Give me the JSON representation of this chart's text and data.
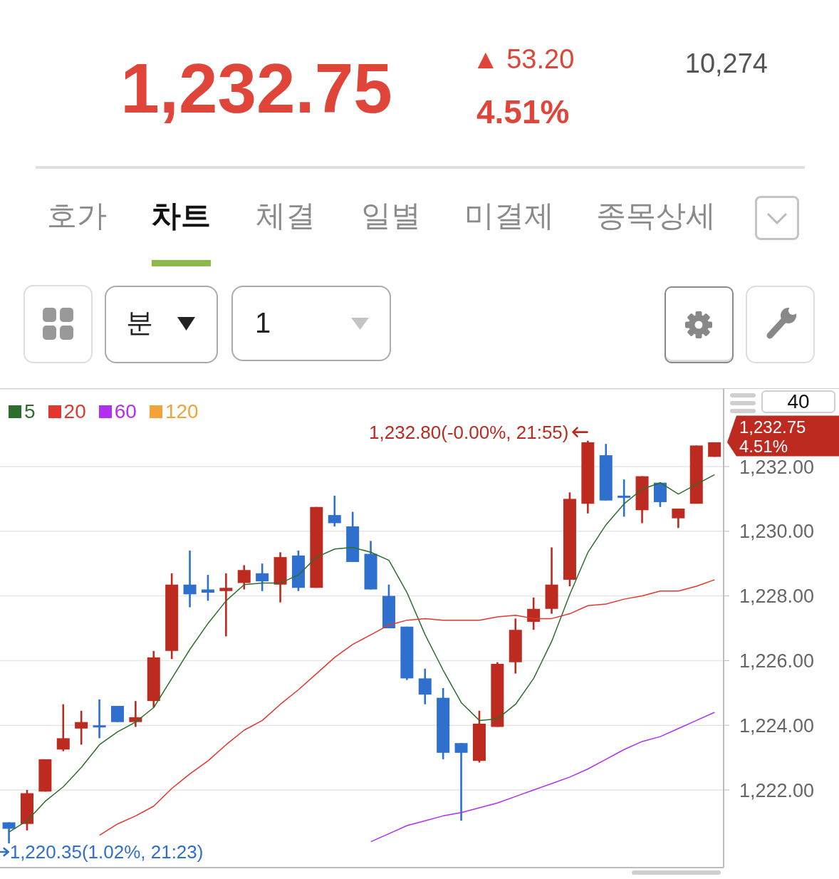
{
  "chart_data": [
    {
      "type": "other",
      "title": "1,232.75",
      "annotations": [
        "▲ 53.20",
        "4.51%",
        "10,274",
        "호가",
        "차트",
        "체결",
        "일별",
        "미결제",
        "종목상세",
        "분",
        "1"
      ]
    },
    {
      "type": "candlestick",
      "categories": [
        null,
        null,
        null,
        null,
        null,
        null,
        null,
        null,
        null,
        null,
        null,
        null,
        null,
        null,
        null,
        null,
        null,
        null,
        null,
        null,
        null,
        null,
        null,
        null,
        null,
        null,
        null,
        null,
        null,
        null,
        null,
        null,
        null,
        null,
        null,
        null,
        null,
        null,
        null,
        null
      ],
      "ohlc": [
        [
          1221.0,
          1221.0,
          1220.35,
          1220.8
        ],
        [
          1220.95,
          1222.0,
          1220.75,
          1221.9
        ],
        [
          1221.95,
          1222.95,
          1221.95,
          1222.95
        ],
        [
          1223.25,
          1224.65,
          1223.2,
          1223.6
        ],
        [
          1223.9,
          1224.45,
          1223.4,
          1224.1
        ],
        [
          1224.0,
          1224.8,
          1223.6,
          1223.95
        ],
        [
          1224.6,
          1224.6,
          1224.1,
          1224.1
        ],
        [
          1224.1,
          1224.75,
          1223.95,
          1224.25
        ],
        [
          1224.75,
          1226.3,
          1224.55,
          1226.1
        ],
        [
          1226.3,
          1228.7,
          1226.05,
          1228.35
        ],
        [
          1228.35,
          1229.4,
          1227.65,
          1228.05
        ],
        [
          1228.2,
          1228.65,
          1227.85,
          1228.1
        ],
        [
          1228.15,
          1228.7,
          1226.75,
          1228.25
        ],
        [
          1228.4,
          1228.95,
          1228.2,
          1228.8
        ],
        [
          1228.7,
          1229.0,
          1228.15,
          1228.45
        ],
        [
          1228.35,
          1229.35,
          1227.8,
          1229.2
        ],
        [
          1229.25,
          1229.4,
          1228.15,
          1228.25
        ],
        [
          1228.25,
          1230.75,
          1228.25,
          1230.75
        ],
        [
          1230.5,
          1231.1,
          1230.15,
          1230.25
        ],
        [
          1230.15,
          1230.6,
          1229.05,
          1229.05
        ],
        [
          1229.3,
          1229.7,
          1228.2,
          1228.2
        ],
        [
          1228.0,
          1228.35,
          1227.0,
          1227.0
        ],
        [
          1227.05,
          1227.05,
          1225.4,
          1225.45
        ],
        [
          1225.45,
          1225.75,
          1224.65,
          1224.95
        ],
        [
          1224.85,
          1225.15,
          1222.95,
          1223.15
        ],
        [
          1223.45,
          1223.45,
          1221.05,
          1223.15
        ],
        [
          1222.9,
          1224.45,
          1222.85,
          1224.05
        ],
        [
          1223.95,
          1225.95,
          1223.95,
          1225.9
        ],
        [
          1225.95,
          1227.3,
          1225.6,
          1226.95
        ],
        [
          1227.2,
          1227.95,
          1226.95,
          1227.6
        ],
        [
          1227.6,
          1229.5,
          1227.45,
          1228.35
        ],
        [
          1228.5,
          1231.2,
          1228.3,
          1231.0
        ],
        [
          1230.85,
          1232.8,
          1230.55,
          1232.75
        ],
        [
          1232.35,
          1232.7,
          1230.95,
          1230.95
        ],
        [
          1231.1,
          1231.6,
          1230.45,
          1231.05
        ],
        [
          1230.65,
          1231.7,
          1230.25,
          1231.7
        ],
        [
          1231.5,
          1231.5,
          1230.75,
          1230.9
        ],
        [
          1230.4,
          1230.7,
          1230.1,
          1230.7
        ],
        [
          1230.85,
          1232.65,
          1230.85,
          1232.65
        ],
        [
          1232.3,
          1232.75,
          1232.3,
          1232.75
        ]
      ],
      "colors": [
        "#2f6fcd",
        "#bd2a20",
        "#bd2a20",
        "#bd2a20",
        "#bd2a20",
        "#2f6fcd",
        "#2f6fcd",
        "#bd2a20",
        "#bd2a20",
        "#bd2a20",
        "#2f6fcd",
        "#2f6fcd",
        "#bd2a20",
        "#bd2a20",
        "#2f6fcd",
        "#bd2a20",
        "#2f6fcd",
        "#bd2a20",
        "#2f6fcd",
        "#2f6fcd",
        "#2f6fcd",
        "#2f6fcd",
        "#2f6fcd",
        "#2f6fcd",
        "#2f6fcd",
        "#2f6fcd",
        "#bd2a20",
        "#bd2a20",
        "#bd2a20",
        "#bd2a20",
        "#bd2a20",
        "#bd2a20",
        "#bd2a20",
        "#2f6fcd",
        "#2f6fcd",
        "#bd2a20",
        "#2f6fcd",
        "#bd2a20",
        "#bd2a20",
        "#bd2a20"
      ],
      "series": [
        {
          "type": "line",
          "name": "5",
          "color": "#2d6e2d",
          "values": [
            1220.7,
            1221.05,
            1221.65,
            1222.1,
            1222.7,
            1223.4,
            1223.8,
            1224.1,
            1224.55,
            1225.45,
            1226.35,
            1227.15,
            1227.85,
            1228.35,
            1228.4,
            1228.4,
            1228.65,
            1229.2,
            1229.45,
            1229.5,
            1229.35,
            1229.1,
            1228.1,
            1226.8,
            1225.7,
            1224.7,
            1224.15,
            1224.2,
            1224.65,
            1225.45,
            1226.6,
            1228.05,
            1229.35,
            1230.2,
            1230.85,
            1231.3,
            1231.5,
            1231.15,
            1231.45,
            1231.75
          ]
        },
        {
          "type": "line",
          "name": "20",
          "color": "#e2372e",
          "values": [
            null,
            null,
            null,
            null,
            null,
            1220.6,
            1220.95,
            1221.2,
            1221.5,
            1222.05,
            1222.5,
            1222.9,
            1223.4,
            1223.85,
            1224.15,
            1224.65,
            1225.1,
            1225.6,
            1226.1,
            1226.5,
            1226.8,
            1227.1,
            1227.25,
            1227.3,
            1227.25,
            1227.25,
            1227.25,
            1227.35,
            1227.4,
            1227.3,
            1227.3,
            1227.45,
            1227.7,
            1227.75,
            1227.9,
            1228.0,
            1228.15,
            1228.15,
            1228.3,
            1228.5
          ]
        },
        {
          "type": "line",
          "name": "60",
          "color": "#b02ff0",
          "values": [
            null,
            null,
            null,
            null,
            null,
            null,
            null,
            null,
            null,
            null,
            null,
            null,
            null,
            null,
            null,
            null,
            null,
            null,
            null,
            null,
            1220.4,
            1220.65,
            1220.9,
            1221.05,
            1221.2,
            1221.3,
            1221.45,
            1221.6,
            1221.8,
            1222.0,
            1222.2,
            1222.4,
            1222.65,
            1222.95,
            1223.25,
            1223.5,
            1223.65,
            1223.9,
            1224.15,
            1224.4
          ]
        },
        {
          "type": "line",
          "name": "120",
          "color": "#f2a33a",
          "values": [
            null,
            null,
            null,
            null,
            null,
            null,
            null,
            null,
            null,
            null,
            null,
            null,
            null,
            null,
            null,
            null,
            null,
            null,
            null,
            null,
            null,
            null,
            null,
            null,
            null,
            null,
            null,
            null,
            null,
            null,
            null,
            null,
            null,
            null,
            null,
            null,
            null,
            null,
            null,
            null
          ]
        }
      ],
      "ylim": [
        1219.6,
        1234.4
      ],
      "yticks": [
        {
          "value": 1222,
          "label": "1,222.00"
        },
        {
          "value": 1224,
          "label": "1,224.00"
        },
        {
          "value": 1226,
          "label": "1,226.00"
        },
        {
          "value": 1228,
          "label": "1,228.00"
        },
        {
          "value": 1230,
          "label": "1,230.00"
        },
        {
          "value": 1232,
          "label": "1,232.00"
        }
      ],
      "tick_labels": "y",
      "grid": "y",
      "legend": "top left",
      "annotations": [
        "40",
        "1,232.80(-0.00%, 21:55)",
        "1,220.35(1.02%, 21:23)",
        "1,232.75",
        "4.51%"
      ]
    }
  ]
}
